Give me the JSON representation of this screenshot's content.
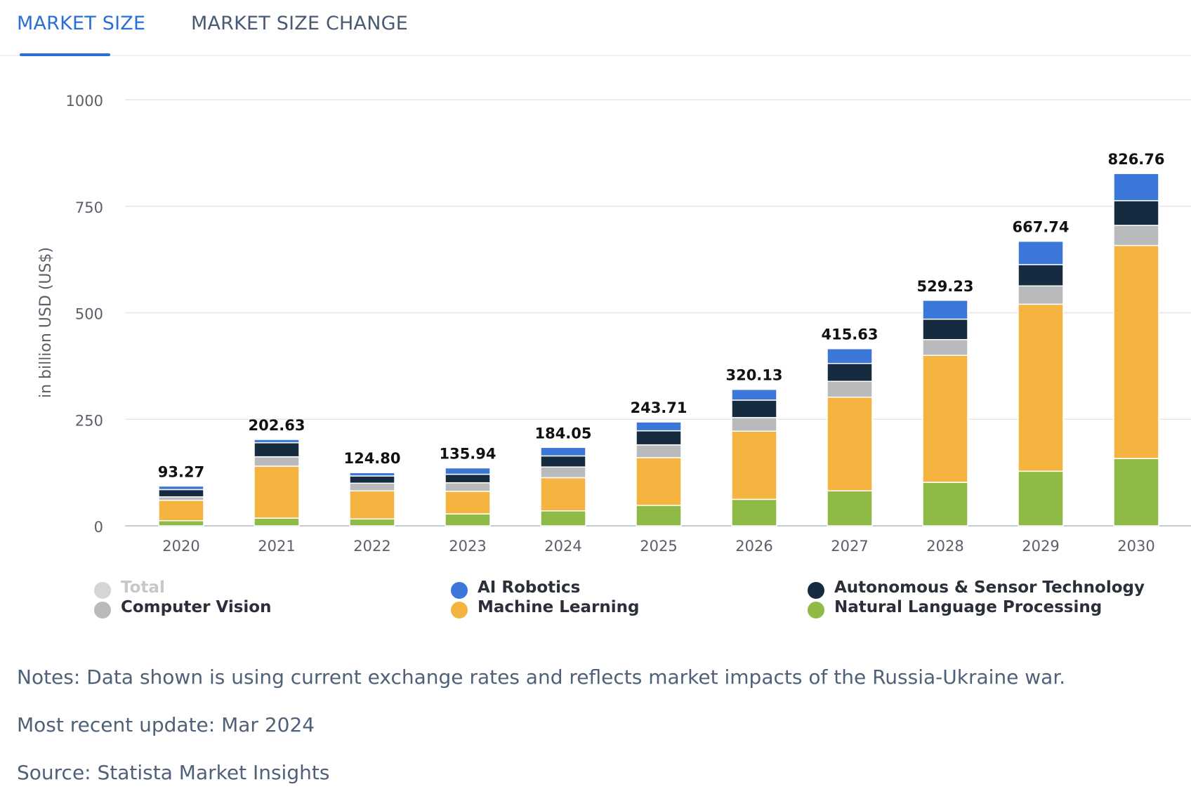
{
  "tabs": {
    "market_size": "MARKET SIZE",
    "market_size_change": "MARKET SIZE CHANGE"
  },
  "colors": {
    "ai_robotics": "#3b76d9",
    "autonomous": "#162a40",
    "computer_vision": "#b9babb",
    "machine_learning": "#f5b43f",
    "nlp": "#8fba45",
    "total_disabled": "#d4d5d7",
    "grid": "#e4e6ea",
    "axis": "#c4cad6",
    "tick_text": "#5a5f68"
  },
  "chart_data": {
    "type": "bar",
    "stacked": true,
    "ylabel": "in billion USD (US$)",
    "ylim": [
      0,
      1000
    ],
    "yticks": [
      0,
      250,
      500,
      750,
      1000
    ],
    "categories": [
      "2020",
      "2021",
      "2022",
      "2023",
      "2024",
      "2025",
      "2026",
      "2027",
      "2028",
      "2029",
      "2030"
    ],
    "totals": [
      "93.27",
      "202.63",
      "124.80",
      "135.94",
      "184.05",
      "243.71",
      "320.13",
      "415.63",
      "529.23",
      "667.74",
      "826.76"
    ],
    "series": [
      {
        "key": "nlp",
        "name": "Natural Language Processing",
        "values": [
          12.0,
          18.0,
          16.0,
          28.0,
          35.0,
          48.0,
          62.0,
          82.0,
          102.0,
          128.0,
          158.0
        ]
      },
      {
        "key": "machine_learning",
        "name": "Machine Learning",
        "values": [
          48.0,
          122.0,
          66.0,
          53.0,
          78.0,
          112.0,
          160.0,
          220.0,
          298.0,
          392.0,
          500.0
        ]
      },
      {
        "key": "computer_vision",
        "name": "Computer Vision",
        "values": [
          8.0,
          22.0,
          18.0,
          20.0,
          25.0,
          30.0,
          32.0,
          37.0,
          37.0,
          43.0,
          47.0
        ]
      },
      {
        "key": "autonomous",
        "name": "Autonomous & Sensor Technology",
        "values": [
          17.0,
          33.0,
          17.0,
          20.0,
          26.0,
          33.0,
          41.0,
          42.0,
          48.0,
          50.0,
          58.0
        ]
      },
      {
        "key": "ai_robotics",
        "name": "AI Robotics",
        "values": [
          8.27,
          7.63,
          7.8,
          14.94,
          20.05,
          20.71,
          25.13,
          34.63,
          44.23,
          54.74,
          63.76
        ]
      }
    ]
  },
  "legend": [
    {
      "key": "total_disabled",
      "label": "Total",
      "disabled": true
    },
    {
      "key": "ai_robotics",
      "label": "AI Robotics"
    },
    {
      "key": "autonomous",
      "label": "Autonomous & Sensor Technology"
    },
    {
      "key": "computer_vision",
      "label": "Computer Vision"
    },
    {
      "key": "machine_learning",
      "label": "Machine Learning"
    },
    {
      "key": "nlp",
      "label": "Natural Language Processing"
    }
  ],
  "notes": {
    "note": "Notes: Data shown is using current exchange rates and reflects market impacts of the Russia-Ukraine war.",
    "update": "Most recent update: Mar 2024",
    "source": "Source: Statista Market Insights"
  }
}
